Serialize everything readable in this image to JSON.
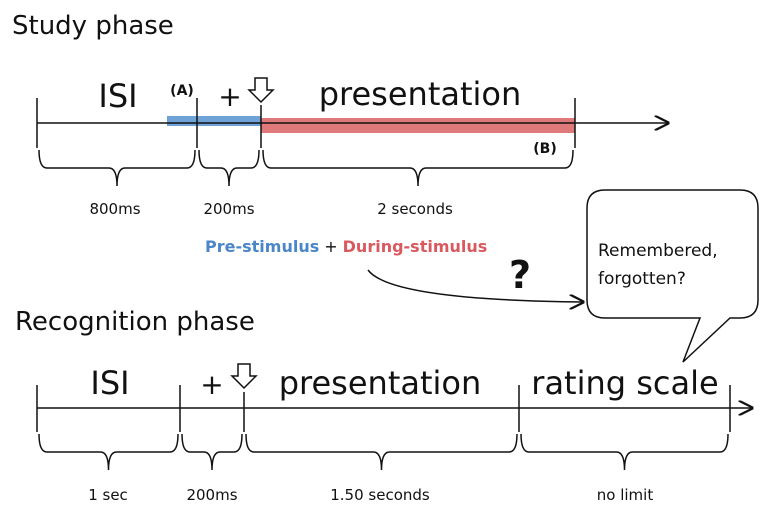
{
  "study": {
    "title": "Study phase",
    "segments": [
      "ISI",
      "+",
      "presentation"
    ],
    "markers": [
      "(A)",
      "(B)"
    ],
    "durations": [
      "800ms",
      "200ms",
      "2 seconds"
    ]
  },
  "combination": {
    "pre": "Pre-stimulus",
    "plus": "+",
    "during": "During-stimulus",
    "question": "?"
  },
  "bubble": {
    "lines": [
      "Remembered,",
      "forgotten?"
    ]
  },
  "recognition": {
    "title": "Recognition phase",
    "segments": [
      "ISI",
      "+",
      "presentation",
      "rating scale"
    ],
    "durations": [
      "1 sec",
      "200ms",
      "1.50 seconds",
      "no limit"
    ]
  }
}
